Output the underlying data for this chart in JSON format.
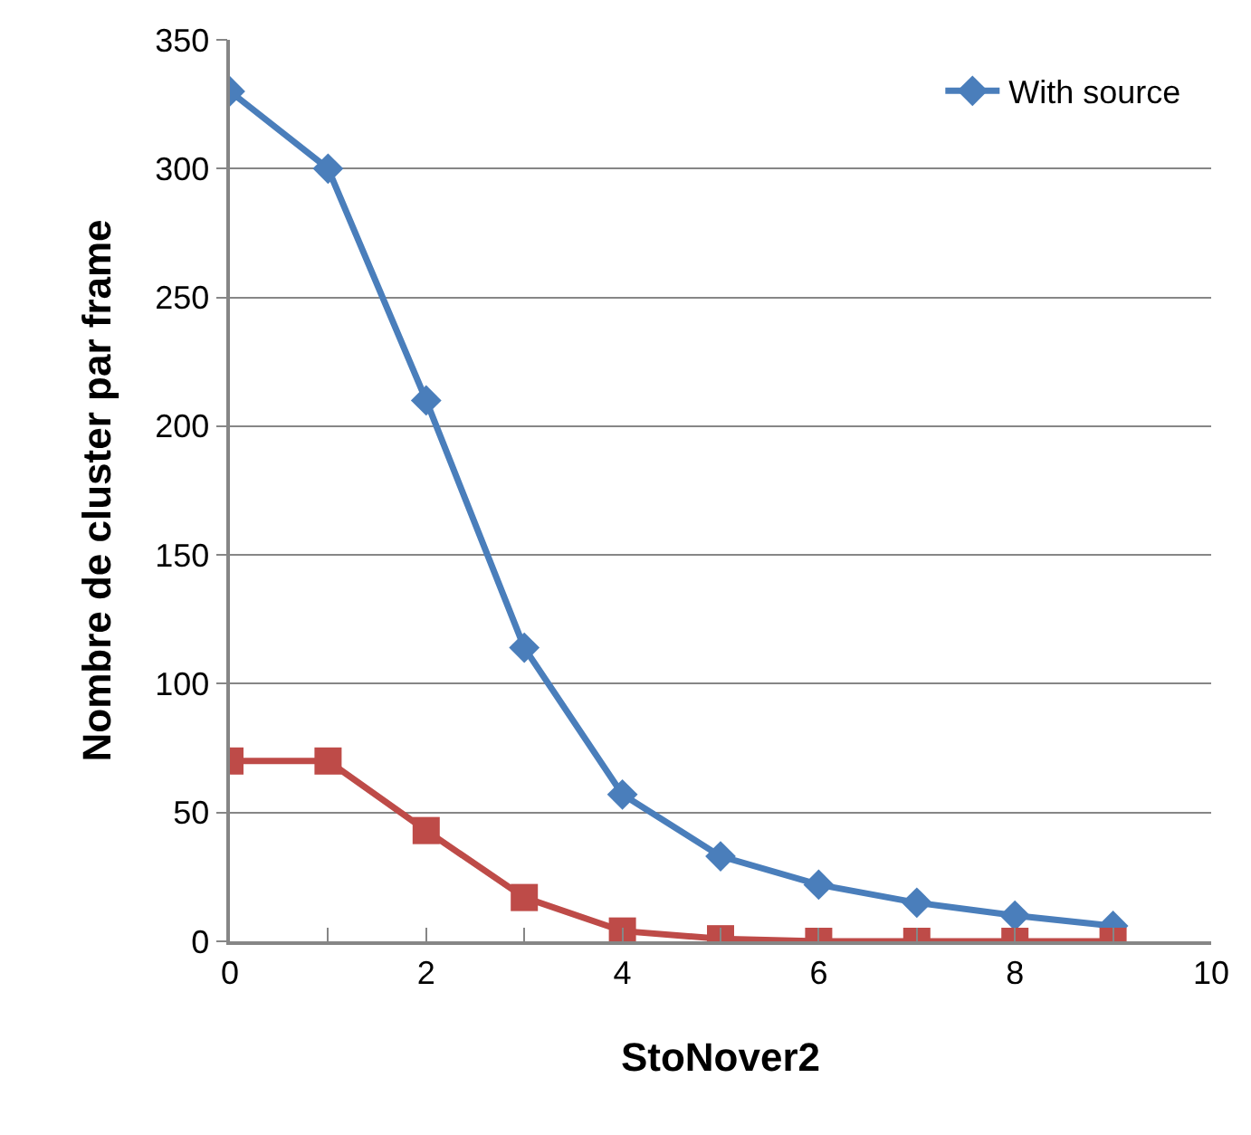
{
  "chart_data": {
    "type": "line",
    "xlabel": "StoNover2",
    "ylabel": "Nombre de cluster par frame",
    "x": [
      0,
      1,
      2,
      3,
      4,
      5,
      6,
      7,
      8,
      9
    ],
    "series": [
      {
        "name": "With source",
        "color": "#4a7ebb",
        "marker": "diamond",
        "values": [
          330,
          300,
          210,
          114,
          57,
          33,
          22,
          15,
          10,
          6
        ]
      },
      {
        "color": "#be4b48",
        "marker": "square",
        "values": [
          70,
          70,
          43,
          17,
          4,
          1,
          0,
          0,
          0,
          0
        ]
      }
    ],
    "xlim": [
      0,
      10
    ],
    "xticks": [
      0,
      {
        "value": 1,
        "label": null
      },
      2,
      {
        "value": 3,
        "label": null
      },
      4,
      {
        "value": 5,
        "label": null
      },
      6,
      {
        "value": 7,
        "label": null
      },
      8,
      {
        "value": 9,
        "label": null
      },
      10
    ],
    "ylim": [
      0,
      350
    ],
    "yticks": [
      0,
      50,
      100,
      150,
      200,
      250,
      300,
      350
    ],
    "grid": "y",
    "legend": "top right",
    "line_style": "solid"
  }
}
